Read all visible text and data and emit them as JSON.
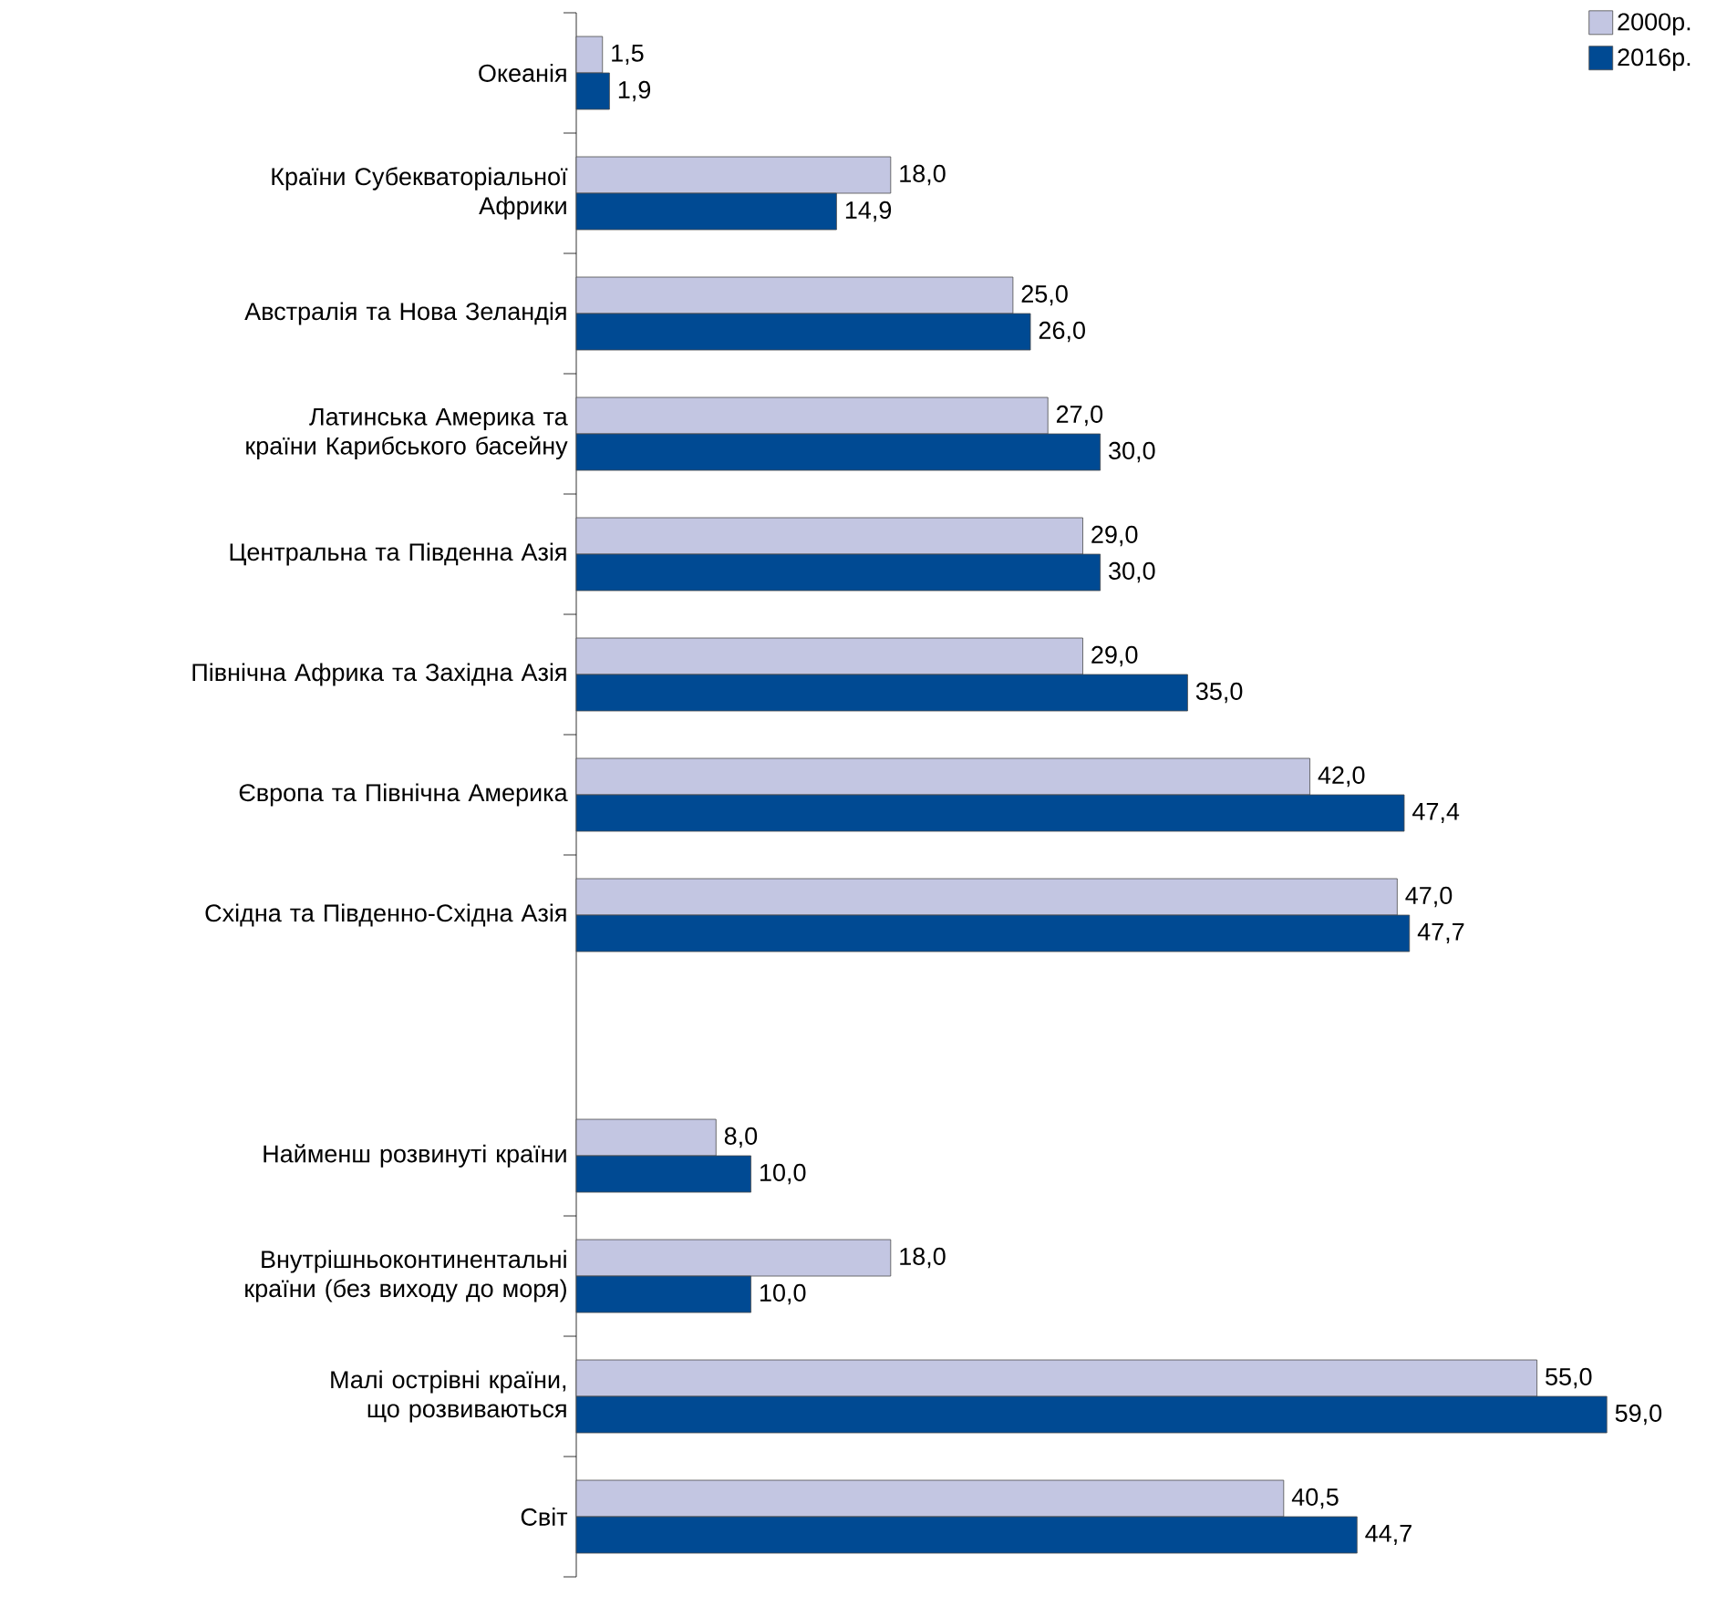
{
  "chart_data": {
    "type": "bar",
    "orientation": "horizontal",
    "legend": "top right",
    "categories": [
      "Океанія",
      "Країни Субекваторіальної Африки",
      "Австралія та Нова Зеландія",
      "Латинська Америка та країни Карибського басейну",
      "Центральна та Південна Азія",
      "Північна Африка та Західна Азія",
      "Європа та Північна Америка",
      "Східна та Південно-Східна Азія",
      null,
      "Найменш розвинуті країни",
      "Внутрішньоконтинентальні країни (без виходу до моря)",
      "Малі острівні країни, що розвиваються",
      "Світ"
    ],
    "series": [
      {
        "name": "2000р.",
        "color": "#c3c6e2",
        "values": [
          1.5,
          18.0,
          25.0,
          27.0,
          29.0,
          29.0,
          42.0,
          47.0,
          null,
          8.0,
          18.0,
          55.0,
          40.5
        ],
        "value_labels": [
          "1,5",
          "18,0",
          "25,0",
          "27,0",
          "29,0",
          "29,0",
          "42,0",
          "47,0",
          null,
          "8,0",
          "18,0",
          "55,0",
          "40,5"
        ]
      },
      {
        "name": "2016р.",
        "color": "#004a93",
        "values": [
          1.9,
          14.9,
          26.0,
          30.0,
          30.0,
          35.0,
          47.4,
          47.7,
          null,
          10.0,
          10.0,
          59.0,
          44.7
        ],
        "value_labels": [
          "1,9",
          "14,9",
          "26,0",
          "30,0",
          "30,0",
          "35,0",
          "47,4",
          "47,7",
          null,
          "10,0",
          "10,0",
          "59,0",
          "44,7"
        ]
      }
    ]
  }
}
